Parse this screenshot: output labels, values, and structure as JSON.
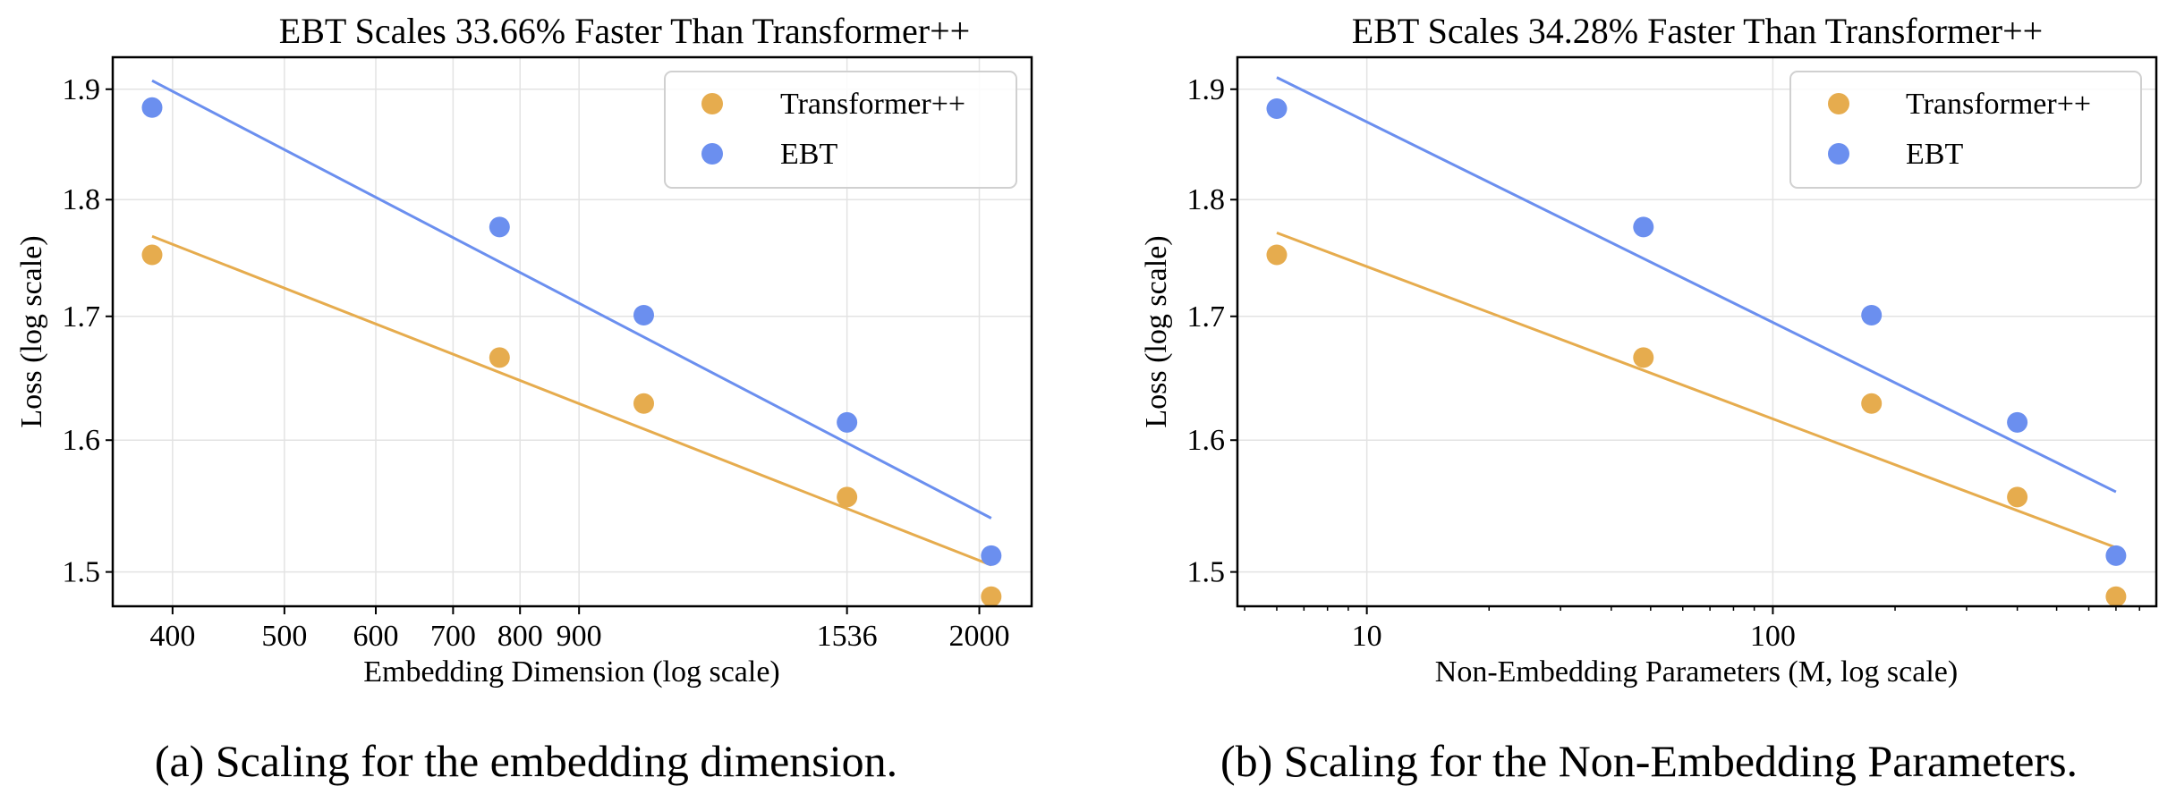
{
  "chart_data": [
    {
      "type": "scatter",
      "title": "EBT Scales 33.66% Faster Than Transformer++",
      "xlabel": "Embedding Dimension (log scale)",
      "ylabel": "Loss (log scale)",
      "xscale": "log",
      "yscale": "log",
      "xlim": [
        355,
        2220
      ],
      "ylim": [
        1.475,
        1.93
      ],
      "xticks": [
        400,
        500,
        600,
        700,
        800,
        900,
        1536,
        2000
      ],
      "xtick_labels": [
        "400",
        "500",
        "600",
        "700",
        "800",
        "900",
        "1536",
        "2000"
      ],
      "yticks": [
        1.5,
        1.6,
        1.7,
        1.8,
        1.9
      ],
      "ytick_labels": [
        "1.5",
        "1.6",
        "1.7",
        "1.8",
        "1.9"
      ],
      "grid": true,
      "legend_position": "upper right",
      "series": [
        {
          "name": "Transformer++",
          "color": "#E6AC4E",
          "x": [
            384,
            768,
            1024,
            1536,
            2048
          ],
          "y": [
            1.752,
            1.666,
            1.629,
            1.556,
            1.482
          ],
          "fit": [
            [
              384,
              1.768
            ],
            [
              2048,
              1.505
            ]
          ]
        },
        {
          "name": "EBT",
          "color": "#6B8FEF",
          "x": [
            384,
            768,
            1024,
            1536,
            2048
          ],
          "y": [
            1.883,
            1.776,
            1.701,
            1.614,
            1.512
          ],
          "fit": [
            [
              384,
              1.908
            ],
            [
              2048,
              1.54
            ]
          ]
        }
      ]
    },
    {
      "type": "scatter",
      "title": "EBT Scales 34.28% Faster Than Transformer++",
      "xlabel": "Non-Embedding Parameters (M, log scale)",
      "ylabel": "Loss (log scale)",
      "xscale": "log",
      "yscale": "log",
      "xlim": [
        4.8,
        880
      ],
      "ylim": [
        1.475,
        1.93
      ],
      "xticks": [
        10,
        100
      ],
      "xtick_labels": [
        "10",
        "100"
      ],
      "yticks": [
        1.5,
        1.6,
        1.7,
        1.8,
        1.9
      ],
      "ytick_labels": [
        "1.5",
        "1.6",
        "1.7",
        "1.8",
        "1.9"
      ],
      "grid": true,
      "legend_position": "upper right",
      "series": [
        {
          "name": "Transformer++",
          "color": "#E6AC4E",
          "x": [
            6,
            48,
            175,
            400,
            700
          ],
          "y": [
            1.752,
            1.666,
            1.629,
            1.556,
            1.482
          ],
          "fit": [
            [
              6,
              1.771
            ],
            [
              700,
              1.518
            ]
          ]
        },
        {
          "name": "EBT",
          "color": "#6B8FEF",
          "x": [
            6,
            48,
            175,
            400,
            700
          ],
          "y": [
            1.882,
            1.776,
            1.701,
            1.614,
            1.512
          ],
          "fit": [
            [
              6,
              1.911
            ],
            [
              700,
              1.56
            ]
          ]
        }
      ]
    }
  ],
  "captions": [
    "(a) Scaling for the embedding dimension.",
    "(b) Scaling for the Non-Embedding Parameters."
  ]
}
